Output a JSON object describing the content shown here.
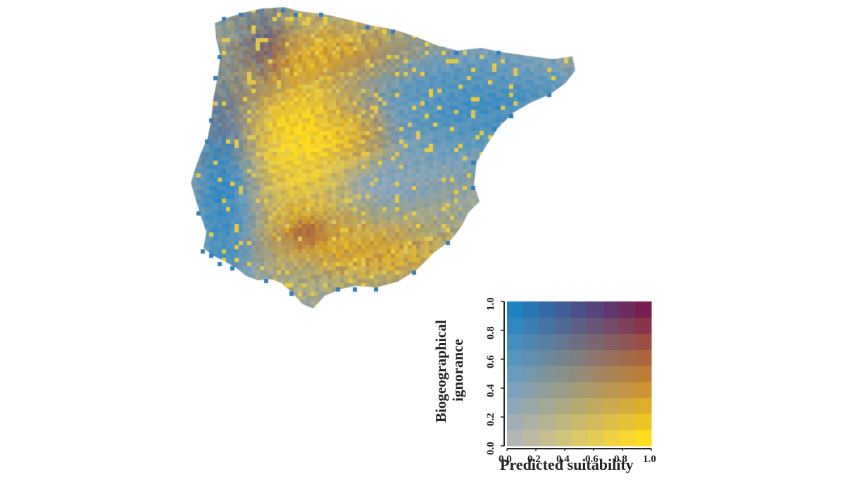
{
  "figure": {
    "title": "",
    "map_region": "Iberian Peninsula"
  },
  "legend": {
    "xlabel": "Predicted suitability",
    "ylabel_line1": "Biogeographical",
    "ylabel_line2": "ignorance",
    "x_ticks": [
      "0.0",
      "0.2",
      "0.4",
      "0.6",
      "0.8",
      "1.0"
    ],
    "y_ticks": [
      "0.0",
      "0.2",
      "0.4",
      "0.6",
      "0.8",
      "1.0"
    ],
    "xlim": [
      0,
      1
    ],
    "ylim": [
      0,
      1
    ]
  },
  "colors": {
    "low_low": "#b4b4b4",
    "high_suitability_low_ignorance": "#ffdc1e",
    "low_suitability_high_ignorance": "#1e82c3",
    "high_high": "#781e50",
    "outline": "#222222"
  }
}
